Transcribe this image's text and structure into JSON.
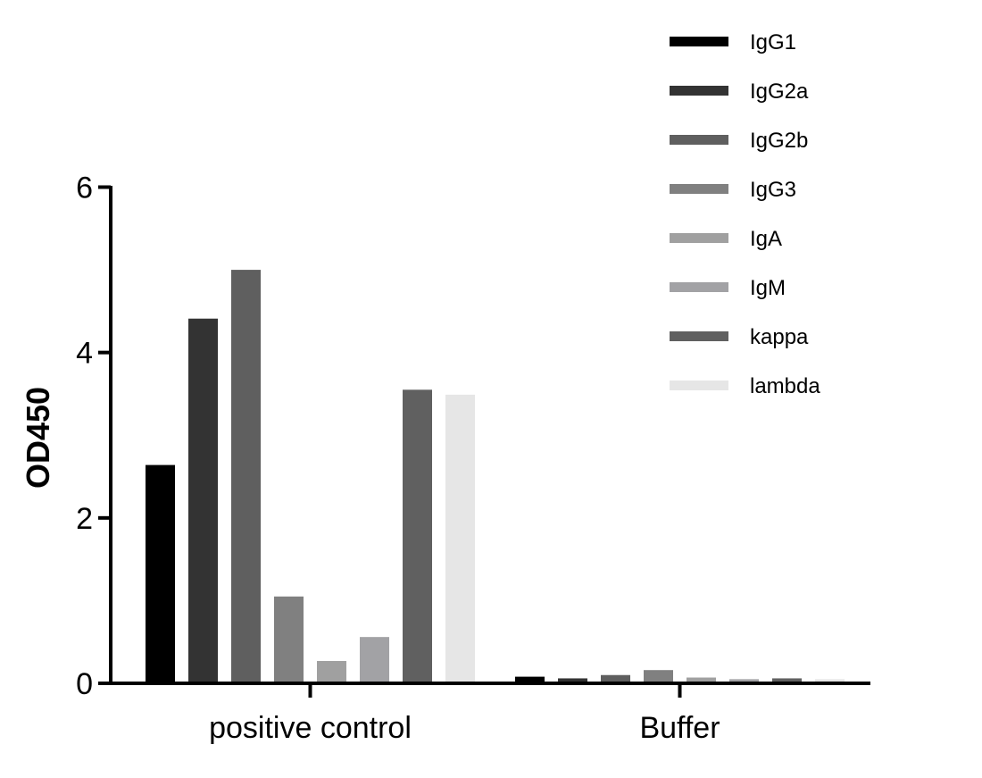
{
  "chart_data": {
    "type": "bar",
    "title": "",
    "xlabel": "",
    "ylabel": "OD450",
    "ylim": [
      0,
      6
    ],
    "yticks": [
      0,
      2,
      4,
      6
    ],
    "grid": false,
    "legend_position": "top-right",
    "categories": [
      "positive control",
      "Buffer"
    ],
    "series": [
      {
        "name": "IgG1",
        "color": "#000000",
        "values": [
          2.64,
          0.08
        ]
      },
      {
        "name": "IgG2a",
        "color": "#333333",
        "values": [
          4.41,
          0.06
        ]
      },
      {
        "name": "IgG2b",
        "color": "#5f5f5f",
        "values": [
          5.0,
          0.1
        ]
      },
      {
        "name": "IgG3",
        "color": "#808080",
        "values": [
          1.05,
          0.16
        ]
      },
      {
        "name": "IgA",
        "color": "#a0a0a0",
        "values": [
          0.27,
          0.07
        ]
      },
      {
        "name": "IgM",
        "color": "#a2a2a5",
        "values": [
          0.56,
          0.05
        ]
      },
      {
        "name": "kappa",
        "color": "#606060",
        "values": [
          3.55,
          0.06
        ]
      },
      {
        "name": "lambda",
        "color": "#e6e6e6",
        "values": [
          3.49,
          0.05
        ]
      }
    ]
  }
}
